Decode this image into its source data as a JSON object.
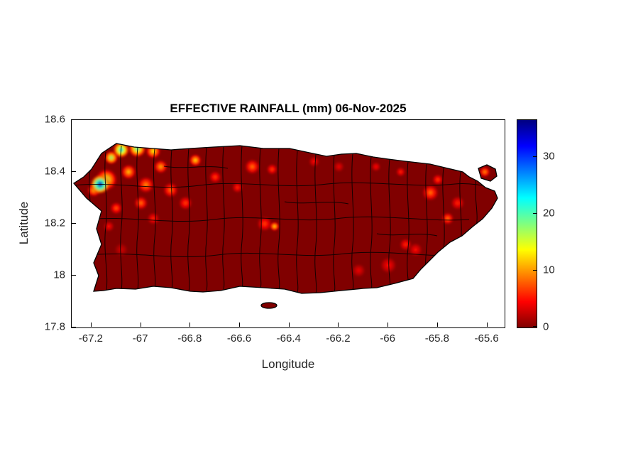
{
  "figure": {
    "title": "EFFECTIVE RAINFALL (mm) 06-Nov-2025",
    "xlabel": "Longitude",
    "ylabel": "Latitude"
  },
  "axes": {
    "xlim": [
      -67.28,
      -65.53
    ],
    "ylim": [
      17.8,
      18.6
    ],
    "x_ticks": [
      {
        "value": -67.2,
        "label": "-67.2"
      },
      {
        "value": -67.0,
        "label": "-67"
      },
      {
        "value": -66.8,
        "label": "-66.8"
      },
      {
        "value": -66.6,
        "label": "-66.6"
      },
      {
        "value": -66.4,
        "label": "-66.4"
      },
      {
        "value": -66.2,
        "label": "-66.2"
      },
      {
        "value": -66.0,
        "label": "-66"
      },
      {
        "value": -65.8,
        "label": "-65.8"
      },
      {
        "value": -65.6,
        "label": "-65.6"
      }
    ],
    "y_ticks": [
      {
        "value": 17.8,
        "label": "17.8"
      },
      {
        "value": 18.0,
        "label": "18"
      },
      {
        "value": 18.2,
        "label": "18.2"
      },
      {
        "value": 18.4,
        "label": "18.4"
      },
      {
        "value": 18.6,
        "label": "18.6"
      }
    ]
  },
  "colorbar": {
    "clim": [
      0,
      36.5
    ],
    "ticks": [
      {
        "value": 0,
        "label": "0"
      },
      {
        "value": 10,
        "label": "10"
      },
      {
        "value": 20,
        "label": "20"
      },
      {
        "value": 30,
        "label": "30"
      }
    ],
    "colormap": "jet-reversed",
    "stops": [
      {
        "at": 0.0,
        "color": "#800000"
      },
      {
        "at": 0.125,
        "color": "#ff0000"
      },
      {
        "at": 0.375,
        "color": "#ffff00"
      },
      {
        "at": 0.625,
        "color": "#00ffff"
      },
      {
        "at": 0.875,
        "color": "#0000ff"
      },
      {
        "at": 1.0,
        "color": "#000080"
      }
    ]
  },
  "chart_data": {
    "type": "heatmap",
    "title": "EFFECTIVE RAINFALL (mm) 06-Nov-2025",
    "xlabel": "Longitude",
    "ylabel": "Latitude",
    "xlim": [
      -67.28,
      -65.53
    ],
    "ylim": [
      17.8,
      18.6
    ],
    "clim": [
      0,
      36.5
    ],
    "colorbar_ticks": [
      0,
      10,
      20,
      30
    ],
    "units": "mm",
    "region": "Puerto Rico with municipality boundaries",
    "background_value_mm": 0,
    "hotspots": [
      {
        "lon": -67.165,
        "lat": 18.352,
        "value_mm": 34,
        "r": 14
      },
      {
        "lon": -67.14,
        "lat": 18.37,
        "value_mm": 16,
        "r": 16
      },
      {
        "lon": -67.19,
        "lat": 18.33,
        "value_mm": 12,
        "r": 10
      },
      {
        "lon": -67.08,
        "lat": 18.485,
        "value_mm": 24,
        "r": 12
      },
      {
        "lon": -67.015,
        "lat": 18.49,
        "value_mm": 20,
        "r": 13
      },
      {
        "lon": -66.95,
        "lat": 18.48,
        "value_mm": 14,
        "r": 11
      },
      {
        "lon": -67.12,
        "lat": 18.455,
        "value_mm": 18,
        "r": 10
      },
      {
        "lon": -67.05,
        "lat": 18.4,
        "value_mm": 12,
        "r": 11
      },
      {
        "lon": -66.98,
        "lat": 18.35,
        "value_mm": 10,
        "r": 12
      },
      {
        "lon": -67.0,
        "lat": 18.28,
        "value_mm": 9,
        "r": 10
      },
      {
        "lon": -66.92,
        "lat": 18.42,
        "value_mm": 11,
        "r": 10
      },
      {
        "lon": -66.88,
        "lat": 18.33,
        "value_mm": 9,
        "r": 11
      },
      {
        "lon": -67.1,
        "lat": 18.26,
        "value_mm": 8,
        "r": 9
      },
      {
        "lon": -66.82,
        "lat": 18.28,
        "value_mm": 7,
        "r": 10
      },
      {
        "lon": -66.95,
        "lat": 18.22,
        "value_mm": 6,
        "r": 9
      },
      {
        "lon": -67.13,
        "lat": 18.19,
        "value_mm": 5,
        "r": 8
      },
      {
        "lon": -66.78,
        "lat": 18.445,
        "value_mm": 13,
        "r": 9
      },
      {
        "lon": -66.7,
        "lat": 18.38,
        "value_mm": 7,
        "r": 9
      },
      {
        "lon": -66.55,
        "lat": 18.42,
        "value_mm": 9,
        "r": 11
      },
      {
        "lon": -66.47,
        "lat": 18.41,
        "value_mm": 7,
        "r": 8
      },
      {
        "lon": -66.61,
        "lat": 18.34,
        "value_mm": 6,
        "r": 8
      },
      {
        "lon": -66.46,
        "lat": 18.19,
        "value_mm": 13,
        "r": 7
      },
      {
        "lon": -66.5,
        "lat": 18.2,
        "value_mm": 7,
        "r": 11
      },
      {
        "lon": -65.83,
        "lat": 18.32,
        "value_mm": 9,
        "r": 12
      },
      {
        "lon": -65.8,
        "lat": 18.37,
        "value_mm": 7,
        "r": 8
      },
      {
        "lon": -65.76,
        "lat": 18.22,
        "value_mm": 9,
        "r": 9
      },
      {
        "lon": -65.72,
        "lat": 18.28,
        "value_mm": 6,
        "r": 10
      },
      {
        "lon": -65.61,
        "lat": 18.4,
        "value_mm": 10,
        "r": 8
      },
      {
        "lon": -65.89,
        "lat": 18.1,
        "value_mm": 5,
        "r": 10
      },
      {
        "lon": -65.93,
        "lat": 18.12,
        "value_mm": 6,
        "r": 9
      },
      {
        "lon": -66.0,
        "lat": 18.04,
        "value_mm": 5,
        "r": 12
      },
      {
        "lon": -66.12,
        "lat": 18.02,
        "value_mm": 4,
        "r": 10
      },
      {
        "lon": -67.08,
        "lat": 18.1,
        "value_mm": 3,
        "r": 10
      },
      {
        "lon": -66.3,
        "lat": 18.44,
        "value_mm": 5,
        "r": 8
      },
      {
        "lon": -66.2,
        "lat": 18.42,
        "value_mm": 4,
        "r": 8
      },
      {
        "lon": -66.05,
        "lat": 18.42,
        "value_mm": 5,
        "r": 7
      },
      {
        "lon": -65.95,
        "lat": 18.4,
        "value_mm": 6,
        "r": 7
      }
    ]
  }
}
